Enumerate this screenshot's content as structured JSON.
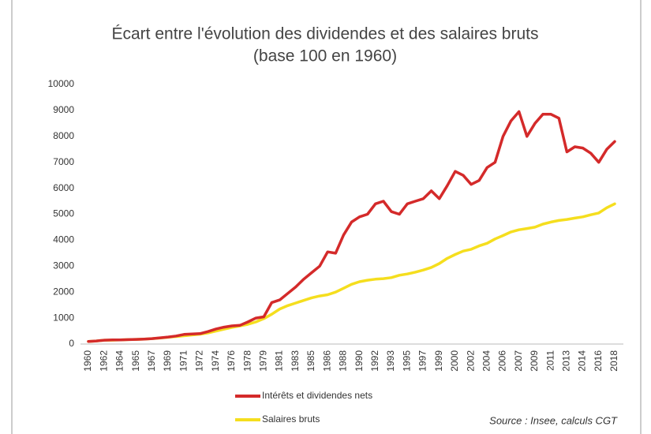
{
  "chart_data": {
    "type": "line",
    "title": "Écart entre l'évolution des dividendes et des salaires bruts",
    "subtitle": "(base 100 en 1960)",
    "annotation": "Source : Insee, calculs CGT",
    "categories": [
      "1960",
      null,
      "1962",
      null,
      "1964",
      null,
      "1965",
      null,
      "1967",
      null,
      "1969",
      null,
      "1971",
      null,
      "1972",
      null,
      "1974",
      null,
      "1976",
      null,
      "1978",
      null,
      "1979",
      null,
      "1981",
      null,
      "1983",
      null,
      "1985",
      null,
      "1986",
      null,
      "1988",
      null,
      "1990",
      null,
      "1992",
      null,
      "1993",
      null,
      "1995",
      null,
      "1997",
      null,
      "1999",
      null,
      "2000",
      null,
      "2002",
      null,
      "2004",
      null,
      "2006",
      null,
      "2007",
      null,
      "2009",
      null,
      "2011",
      null,
      "2013",
      null,
      "2014",
      null,
      "2016",
      null,
      "2018"
    ],
    "series": [
      {
        "name": "Intérêts et dividendes nets",
        "color": "#d42a2a",
        "values": [
          100,
          120,
          150,
          160,
          160,
          170,
          180,
          190,
          210,
          240,
          270,
          310,
          370,
          390,
          400,
          480,
          580,
          650,
          700,
          720,
          850,
          1000,
          1050,
          1600,
          1700,
          1950,
          2200,
          2500,
          2750,
          3000,
          3550,
          3500,
          4200,
          4700,
          4900,
          5000,
          5400,
          5500,
          5100,
          5000,
          5400,
          5500,
          5600,
          5900,
          5600,
          6100,
          6650,
          6500,
          6150,
          6300,
          6800,
          7000,
          8000,
          8600,
          8950,
          8000,
          8500,
          8850,
          8850,
          8700,
          7400,
          7600,
          7550,
          7350,
          7000,
          7500,
          7800
        ]
      },
      {
        "name": "Salaires bruts",
        "color": "#f5de1e",
        "values": [
          100,
          120,
          150,
          150,
          160,
          170,
          180,
          190,
          210,
          230,
          260,
          290,
          320,
          350,
          380,
          430,
          500,
          570,
          640,
          700,
          760,
          850,
          980,
          1150,
          1350,
          1480,
          1580,
          1680,
          1780,
          1850,
          1900,
          2000,
          2150,
          2300,
          2400,
          2460,
          2500,
          2520,
          2560,
          2650,
          2700,
          2770,
          2850,
          2950,
          3100,
          3300,
          3450,
          3580,
          3650,
          3780,
          3880,
          4050,
          4180,
          4320,
          4400,
          4450,
          4500,
          4620,
          4700,
          4760,
          4800,
          4850,
          4900,
          4980,
          5050,
          5250,
          5400
        ]
      }
    ],
    "ylim": [
      0,
      10000
    ],
    "yticks": [
      0,
      1000,
      2000,
      3000,
      4000,
      5000,
      6000,
      7000,
      8000,
      9000,
      10000
    ],
    "grid": false
  }
}
